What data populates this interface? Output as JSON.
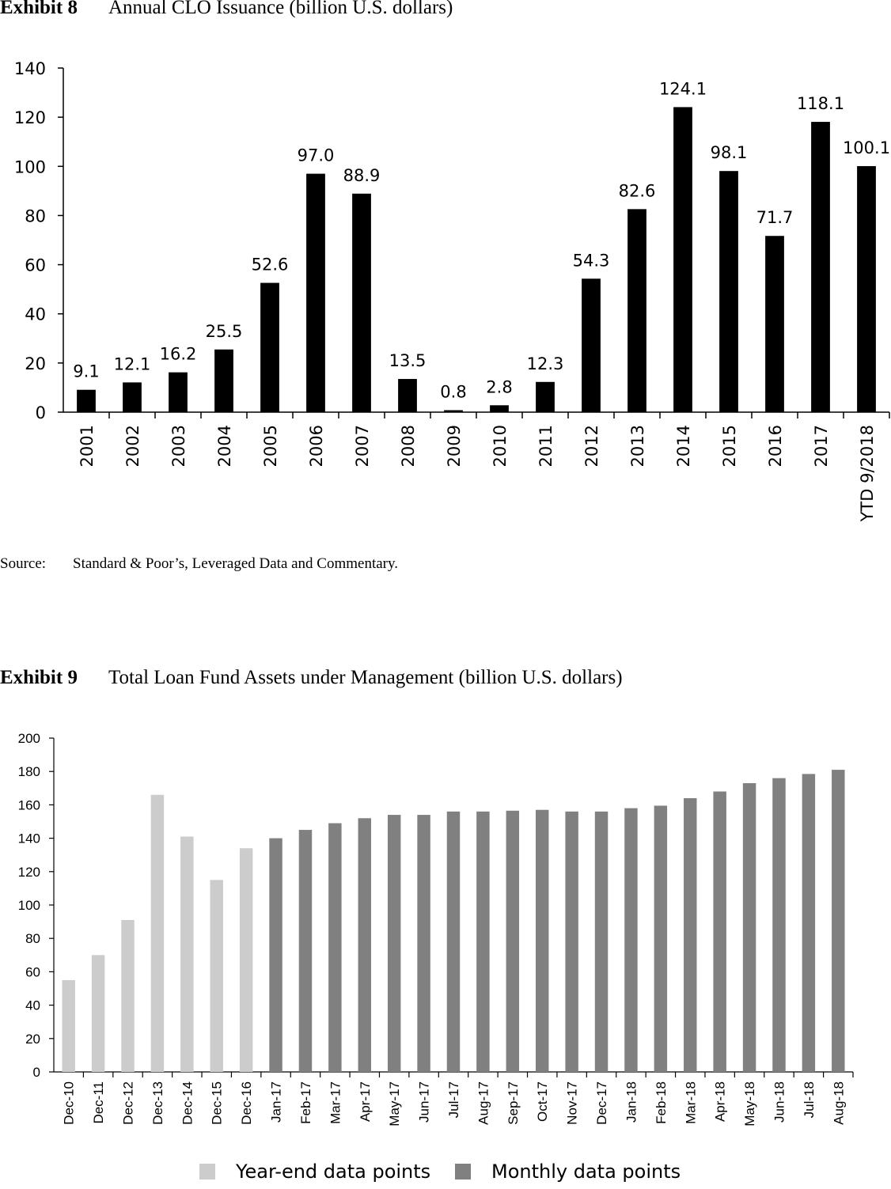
{
  "exhibit8": {
    "label": "Exhibit 8",
    "title": "Annual CLO Issuance (billion U.S. dollars)"
  },
  "source": {
    "label": "Source:",
    "text": "Standard & Poor’s, Leveraged Data and Commentary."
  },
  "exhibit9": {
    "label": "Exhibit 9",
    "title": "Total Loan Fund Assets under Management (billion U.S. dollars)"
  },
  "chart_data": [
    {
      "type": "bar",
      "title": "Annual CLO Issuance (billion U.S. dollars)",
      "xlabel": "",
      "ylabel": "",
      "ylim": [
        0,
        140
      ],
      "yticks": [
        0,
        20,
        40,
        60,
        80,
        100,
        120,
        140
      ],
      "grid": false,
      "categories": [
        "2001",
        "2002",
        "2003",
        "2004",
        "2005",
        "2006",
        "2007",
        "2008",
        "2009",
        "2010",
        "2011",
        "2012",
        "2013",
        "2014",
        "2015",
        "2016",
        "2017",
        "YTD 9/2018"
      ],
      "values": [
        9.1,
        12.1,
        16.2,
        25.5,
        52.6,
        97.0,
        88.9,
        13.5,
        0.8,
        2.8,
        12.3,
        54.3,
        82.6,
        124.1,
        98.1,
        71.7,
        118.1,
        100.1
      ],
      "data_labels": [
        "9.1",
        "12.1",
        "16.2",
        "25.5",
        "52.6",
        "97.0",
        "88.9",
        "13.5",
        "0.8",
        "2.8",
        "12.3",
        "54.3",
        "82.6",
        "124.1",
        "98.1",
        "71.7",
        "118.1",
        "100.1"
      ],
      "color": "#000000"
    },
    {
      "type": "bar",
      "title": "Total Loan Fund Assets under Management (billion U.S. dollars)",
      "xlabel": "",
      "ylabel": "",
      "ylim": [
        0,
        200
      ],
      "yticks": [
        0,
        20,
        40,
        60,
        80,
        100,
        120,
        140,
        160,
        180,
        200
      ],
      "grid": false,
      "legend_position": "bottom",
      "categories": [
        "Dec-10",
        "Dec-11",
        "Dec-12",
        "Dec-13",
        "Dec-14",
        "Dec-15",
        "Dec-16",
        "Jan-17",
        "Feb-17",
        "Mar-17",
        "Apr-17",
        "May-17",
        "Jun-17",
        "Jul-17",
        "Aug-17",
        "Sep-17",
        "Oct-17",
        "Nov-17",
        "Dec-17",
        "Jan-18",
        "Feb-18",
        "Mar-18",
        "Apr-18",
        "May-18",
        "Jun-18",
        "Jul-18",
        "Aug-18"
      ],
      "series": [
        {
          "name": "Year-end data points",
          "color": "#cccccc",
          "values": [
            55,
            70,
            91,
            166,
            141,
            115,
            134,
            null,
            null,
            null,
            null,
            null,
            null,
            null,
            null,
            null,
            null,
            null,
            null,
            null,
            null,
            null,
            null,
            null,
            null,
            null,
            null
          ]
        },
        {
          "name": "Monthly data points",
          "color": "#808080",
          "values": [
            null,
            null,
            null,
            null,
            null,
            null,
            null,
            140,
            145,
            149,
            152,
            154,
            154,
            156,
            156,
            156.5,
            157,
            156,
            156,
            158,
            159.5,
            164,
            168,
            173,
            176,
            178.5,
            181
          ]
        }
      ]
    }
  ]
}
